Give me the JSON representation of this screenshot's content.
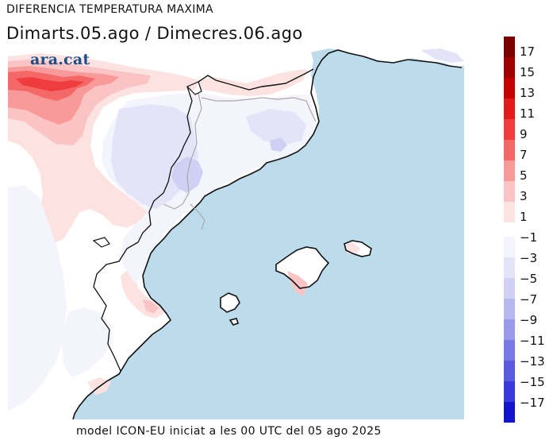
{
  "title": "DIFERENCIA TEMPERATURA MAXIMA",
  "subtitle": "Dimarts.05.ago / Dimecres.06.ago",
  "brand": "ara.cat",
  "footer": "model ICON-EU iniciat a les 00 UTC del 05 ago 2025",
  "colors": {
    "sea": "#bcdcec",
    "land": "#ffffff",
    "coast": "#111111",
    "borders": "#a9a9a9"
  },
  "legend": {
    "positive": [
      {
        "label": "17",
        "color": "#7a0000"
      },
      {
        "label": "15",
        "color": "#9e0000"
      },
      {
        "label": "13",
        "color": "#c40000"
      },
      {
        "label": "11",
        "color": "#e21a1a"
      },
      {
        "label": "9",
        "color": "#f03c3c"
      },
      {
        "label": "7",
        "color": "#f56868"
      },
      {
        "label": "5",
        "color": "#f99a9a"
      },
      {
        "label": "3",
        "color": "#fbc4c4"
      },
      {
        "label": "1",
        "color": "#fde2e2"
      }
    ],
    "negative": [
      {
        "label": "−1",
        "color": "#f4f4fc"
      },
      {
        "label": "−3",
        "color": "#e4e4f8"
      },
      {
        "label": "−5",
        "color": "#d0d0f4"
      },
      {
        "label": "−7",
        "color": "#b8b8f0"
      },
      {
        "label": "−9",
        "color": "#9a9aec"
      },
      {
        "label": "−11",
        "color": "#7a7ae6"
      },
      {
        "label": "−13",
        "color": "#5a5ae0"
      },
      {
        "label": "−15",
        "color": "#3838dc"
      },
      {
        "label": "−17",
        "color": "#1414cc"
      }
    ]
  }
}
